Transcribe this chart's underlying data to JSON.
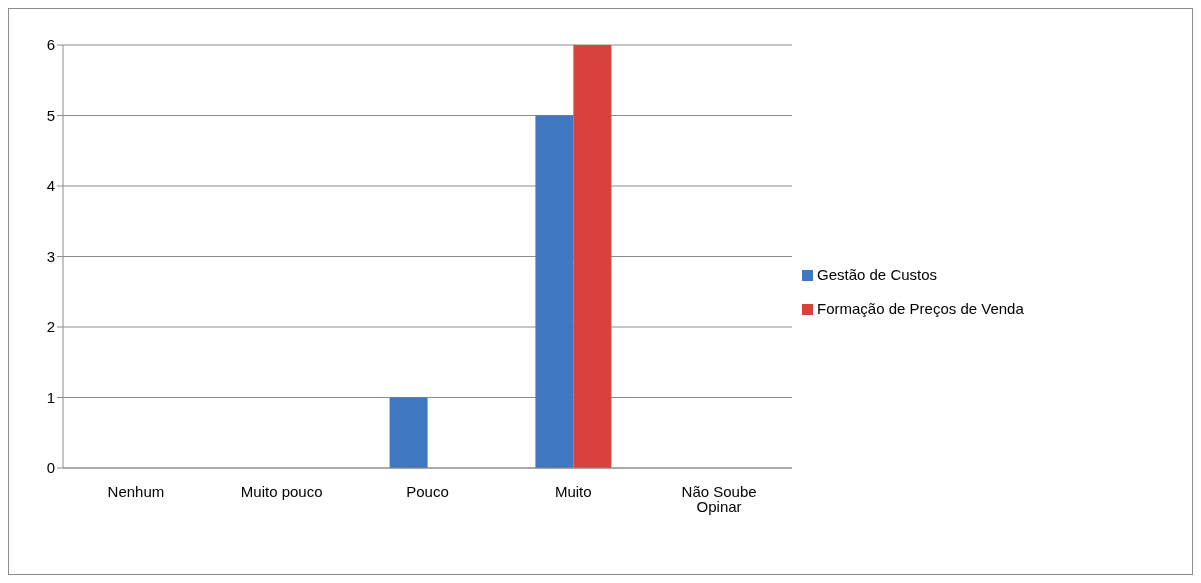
{
  "chart_data": {
    "type": "bar",
    "categories": [
      "Nenhum",
      "Muito pouco",
      "Pouco",
      "Muito",
      "Não Soube Opinar"
    ],
    "series": [
      {
        "name": "Gestão de Custos",
        "color": "#3f78c0",
        "values": [
          0,
          0,
          1,
          5,
          0
        ]
      },
      {
        "name": "Formação de Preços de Venda",
        "color": "#d9413d",
        "values": [
          0,
          0,
          0,
          6,
          0
        ]
      }
    ],
    "ylim": [
      0,
      6
    ],
    "yticks": [
      0,
      1,
      2,
      3,
      4,
      5,
      6
    ],
    "grid": "y",
    "legend": "right"
  }
}
